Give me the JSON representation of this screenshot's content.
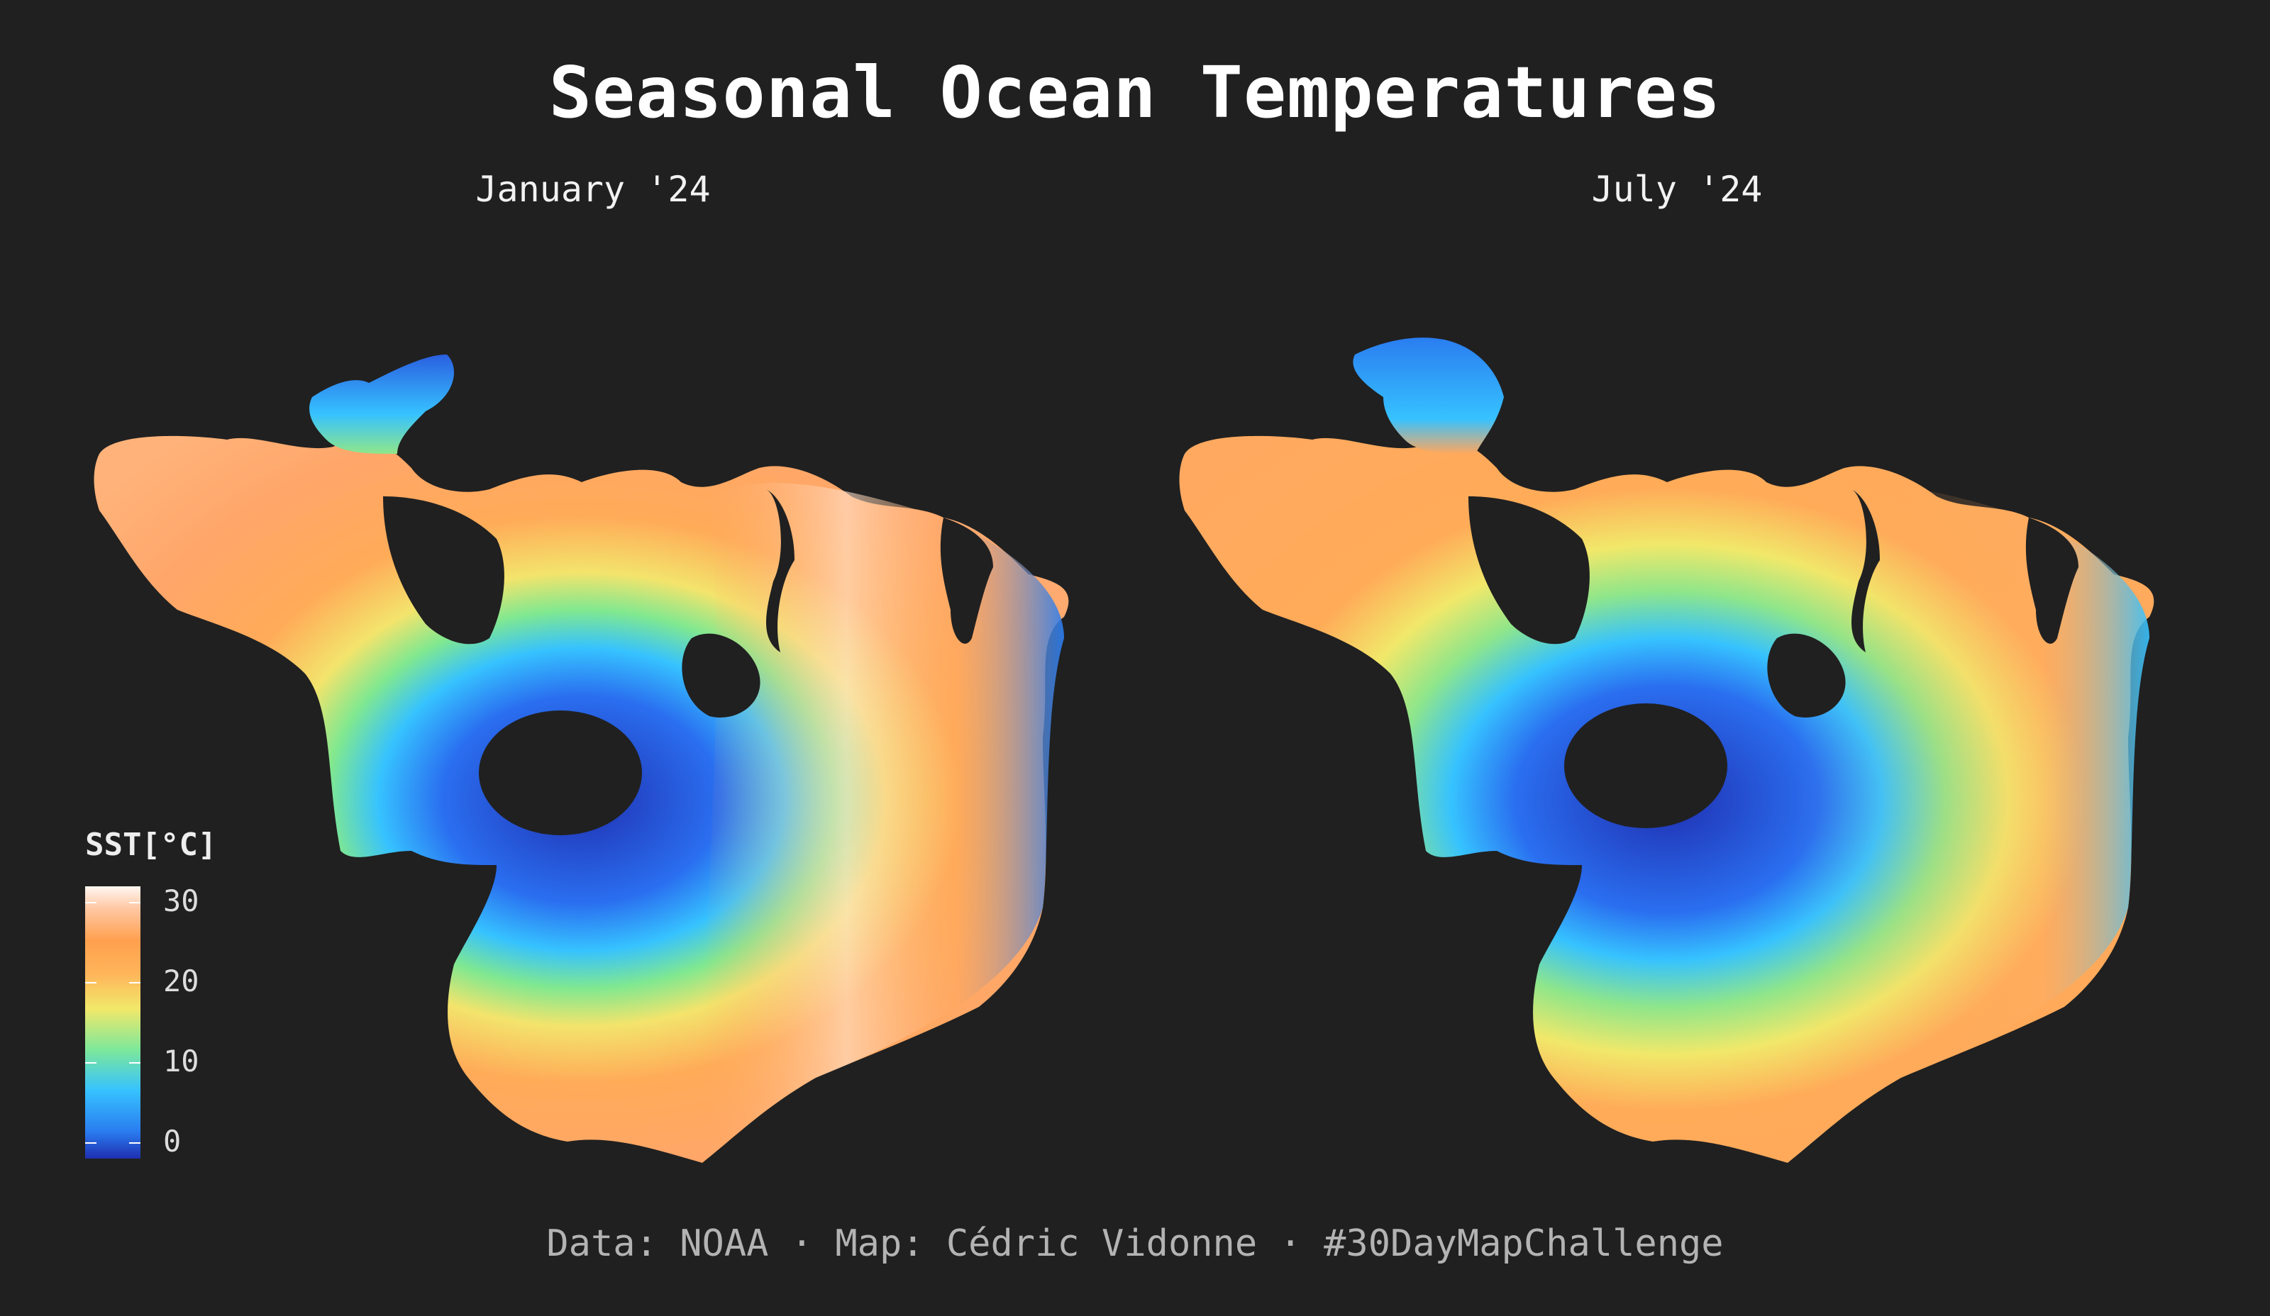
{
  "title": "Seasonal Ocean Temperatures",
  "panels": [
    {
      "label": "January '24"
    },
    {
      "label": "July '24"
    }
  ],
  "legend": {
    "title": "SST[°C]",
    "ticks": [
      "30",
      "20",
      "10",
      "0"
    ],
    "colors": [
      "#1f2fb0",
      "#2a7df0",
      "#36c2ff",
      "#7de89a",
      "#f1e86a",
      "#ffb45a",
      "#ffa04e",
      "#ffc8a4",
      "#fff7f2"
    ]
  },
  "caption": "Data: NOAA · Map: Cédric Vidonne · #30DayMapChallenge"
}
